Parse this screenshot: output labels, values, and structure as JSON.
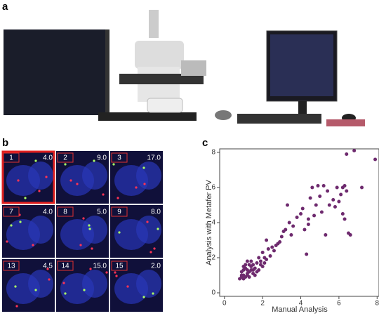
{
  "panels": {
    "a": "a",
    "b": "b",
    "c": "c"
  },
  "grid_cells": [
    {
      "number": "1",
      "value": "4.0"
    },
    {
      "number": "2",
      "value": "9.0"
    },
    {
      "number": "3",
      "value": "17.0"
    },
    {
      "number": "7",
      "value": "4.0"
    },
    {
      "number": "8",
      "value": "5.0"
    },
    {
      "number": "9",
      "value": "8.0"
    },
    {
      "number": "13",
      "value": "4.5"
    },
    {
      "number": "14",
      "value": "15.0"
    },
    {
      "number": "15",
      "value": "2.0"
    }
  ],
  "chart_data": {
    "type": "scatter",
    "x_label": "Manual Analysis",
    "y_label": "Analysis with Metafer PV",
    "color": "#6e2a6e",
    "xlim": [
      -0.25,
      8.1
    ],
    "ylim": [
      -0.2,
      8.2
    ],
    "xticks": [
      0,
      2,
      4,
      6,
      8
    ],
    "yticks": [
      0,
      2,
      4,
      6,
      8
    ],
    "x": [
      0.8,
      0.9,
      1.0,
      1.0,
      1.1,
      1.2,
      0.9,
      1.0,
      1.1,
      1.2,
      1.3,
      1.4,
      1.5,
      1.3,
      1.6,
      1.5,
      1.7,
      1.1,
      1.2,
      1.4,
      1.8,
      1.6,
      0.9,
      1.2,
      1.3,
      1.0,
      1.4,
      1.5,
      1.7,
      2.0,
      1.9,
      2.1,
      2.2,
      2.0,
      2.4,
      2.5,
      2.2,
      2.6,
      2.8,
      3.0,
      3.2,
      2.9,
      3.4,
      3.3,
      3.6,
      3.8,
      3.5,
      4.0,
      4.1,
      4.2,
      4.3,
      4.4,
      4.5,
      4.6,
      4.7,
      4.8,
      4.9,
      5.0,
      5.1,
      5.2,
      5.3,
      5.5,
      5.7,
      5.8,
      5.9,
      6.0,
      6.1,
      6.2,
      6.3,
      6.4,
      6.5,
      6.6,
      6.4,
      6.8,
      7.2,
      7.9,
      6.2,
      5.4,
      3.1,
      2.7,
      2.3,
      1.8,
      1.9,
      2.1,
      6.3,
      4.4
    ],
    "values": [
      0.8,
      0.9,
      0.8,
      1.0,
      0.9,
      1.1,
      1.2,
      1.3,
      1.4,
      1.0,
      1.2,
      1.3,
      1.1,
      0.9,
      1.4,
      1.6,
      1.7,
      1.6,
      1.8,
      1.5,
      1.3,
      1.0,
      1.0,
      1.3,
      1.6,
      1.5,
      1.8,
      1.3,
      1.2,
      1.5,
      1.8,
      2.0,
      1.9,
      2.3,
      2.1,
      2.6,
      3.0,
      2.4,
      2.8,
      3.2,
      3.6,
      2.9,
      4.0,
      5.0,
      3.8,
      4.3,
      3.3,
      4.5,
      4.8,
      3.6,
      2.2,
      4.2,
      5.4,
      6.0,
      4.4,
      5.0,
      6.1,
      5.5,
      4.6,
      6.1,
      3.3,
      5.0,
      5.3,
      4.9,
      6.0,
      5.2,
      5.6,
      4.5,
      4.2,
      5.8,
      3.4,
      3.3,
      7.9,
      8.1,
      6.0,
      7.6,
      6.0,
      5.8,
      3.5,
      2.7,
      2.5,
      2.0,
      1.6,
      1.7,
      6.1,
      3.9
    ]
  }
}
